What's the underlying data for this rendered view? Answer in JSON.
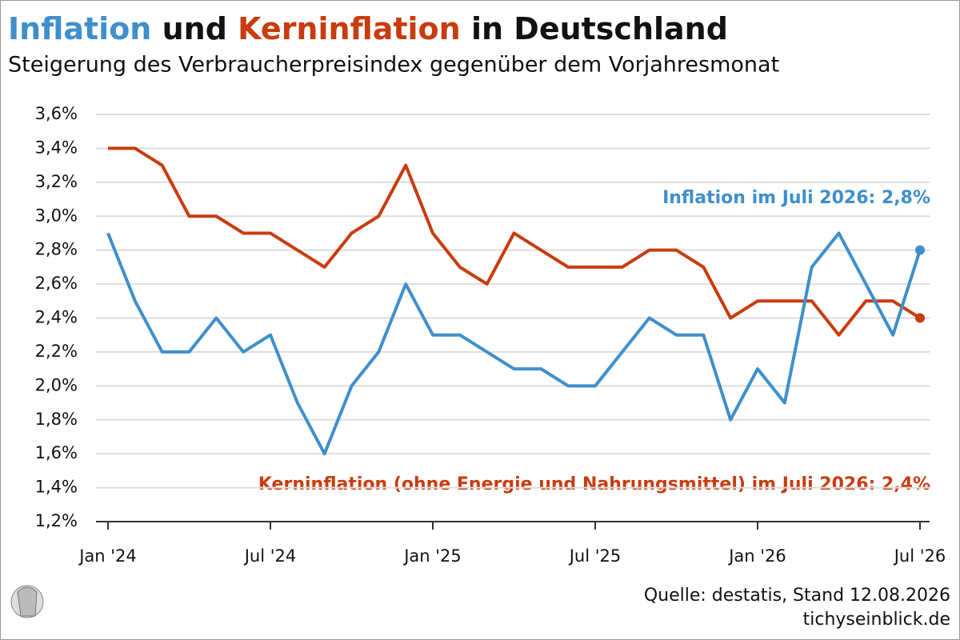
{
  "chart_data": {
    "type": "line",
    "title": [
      "Inflation",
      "und",
      "Kerninflation",
      "in Deutschland"
    ],
    "subtitle": "Steigerung des Verbraucherpreisindex gegenüber dem Vorjahresmonat",
    "categories": [
      "Jan '24",
      null,
      null,
      null,
      null,
      null,
      "Jul '24",
      null,
      null,
      null,
      null,
      null,
      "Jan '25",
      null,
      null,
      null,
      null,
      null,
      "Jul '25",
      null,
      null,
      null,
      null,
      null,
      "Jan '26",
      null,
      null,
      null,
      null,
      null,
      "Jul '26"
    ],
    "series": [
      {
        "name": "Inflation",
        "color": "#3f8fcc",
        "values": [
          2.9,
          2.5,
          2.2,
          2.2,
          2.4,
          2.2,
          2.3,
          1.9,
          1.6,
          2.0,
          2.2,
          2.6,
          2.3,
          2.3,
          2.2,
          2.1,
          2.1,
          2.0,
          2.0,
          2.2,
          2.4,
          2.3,
          2.3,
          1.8,
          2.1,
          1.9,
          2.7,
          2.9,
          2.6,
          2.3,
          2.8
        ]
      },
      {
        "name": "Kerninflation",
        "color": "#c83c0e",
        "values": [
          3.4,
          3.4,
          3.3,
          3.0,
          3.0,
          2.9,
          2.9,
          2.8,
          2.7,
          2.9,
          3.0,
          3.3,
          2.9,
          2.7,
          2.6,
          2.9,
          2.8,
          2.7,
          2.7,
          2.7,
          2.8,
          2.8,
          2.7,
          2.4,
          2.5,
          2.5,
          2.5,
          2.3,
          2.5,
          2.5,
          2.4
        ]
      }
    ],
    "annotations": [
      "Inflation im Juli 2026: 2,8%",
      "Kerninflation (ohne Energie und Nahrungsmittel) im Juli 2026: 2,4%"
    ],
    "ylim": [
      1.2,
      3.6
    ],
    "yticks": [
      {
        "value": 1.2,
        "label": "1,2%"
      },
      {
        "value": 1.4,
        "label": "1,4%"
      },
      {
        "value": 1.6,
        "label": "1,6%"
      },
      {
        "value": 1.8,
        "label": "1,8%"
      },
      {
        "value": 2.0,
        "label": "2,0%"
      },
      {
        "value": 2.2,
        "label": "2,2%"
      },
      {
        "value": 2.4,
        "label": "2,4%"
      },
      {
        "value": 2.6,
        "label": "2,6%"
      },
      {
        "value": 2.8,
        "label": "2,8%"
      },
      {
        "value": 3.0,
        "label": "3,0%"
      },
      {
        "value": 3.2,
        "label": "3,2%"
      },
      {
        "value": 3.4,
        "label": "3,4%"
      },
      {
        "value": 3.6,
        "label": "3,6%"
      }
    ],
    "grid": true,
    "source": "Quelle: destatis, Stand 12.08.2026",
    "brand": "tichyseinblick.de"
  }
}
